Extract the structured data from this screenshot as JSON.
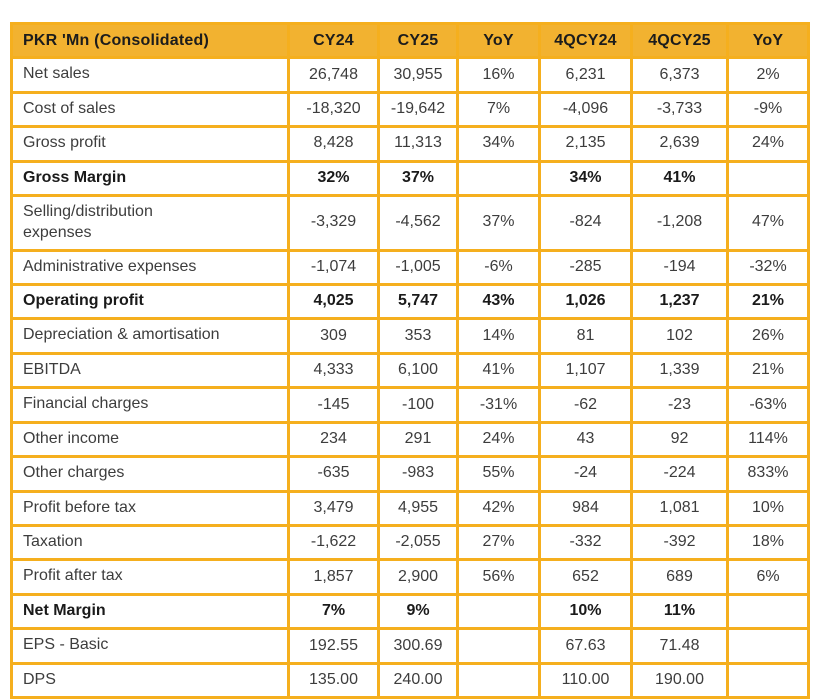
{
  "chart_data": {
    "type": "table",
    "title": "PKR 'Mn (Consolidated)",
    "columns": [
      "PKR 'Mn (Consolidated)",
      "CY24",
      "CY25",
      "YoY",
      "4QCY24",
      "4QCY25",
      "YoY"
    ],
    "rows": [
      {
        "label": "Net sales",
        "bold": false,
        "values": [
          "26,748",
          "30,955",
          "16%",
          "6,231",
          "6,373",
          "2%"
        ]
      },
      {
        "label": "Cost of sales",
        "bold": false,
        "values": [
          "-18,320",
          "-19,642",
          "7%",
          "-4,096",
          "-3,733",
          "-9%"
        ]
      },
      {
        "label": "Gross profit",
        "bold": false,
        "values": [
          "8,428",
          "11,313",
          "34%",
          "2,135",
          "2,639",
          "24%"
        ]
      },
      {
        "label": "Gross Margin",
        "bold": true,
        "values": [
          "32%",
          "37%",
          "",
          "34%",
          "41%",
          ""
        ]
      },
      {
        "label": "Selling/distribution expenses",
        "bold": false,
        "values": [
          "-3,329",
          "-4,562",
          "37%",
          "-824",
          "-1,208",
          "47%"
        ]
      },
      {
        "label": "Administrative expenses",
        "bold": false,
        "values": [
          "-1,074",
          "-1,005",
          "-6%",
          "-285",
          "-194",
          "-32%"
        ]
      },
      {
        "label": "Operating profit",
        "bold": true,
        "values": [
          "4,025",
          "5,747",
          "43%",
          "1,026",
          "1,237",
          "21%"
        ]
      },
      {
        "label": "Depreciation & amortisation",
        "bold": false,
        "values": [
          "309",
          "353",
          "14%",
          "81",
          "102",
          "26%"
        ]
      },
      {
        "label": "EBITDA",
        "bold": false,
        "values": [
          "4,333",
          "6,100",
          "41%",
          "1,107",
          "1,339",
          "21%"
        ]
      },
      {
        "label": "Financial charges",
        "bold": false,
        "values": [
          "-145",
          "-100",
          "-31%",
          "-62",
          "-23",
          "-63%"
        ]
      },
      {
        "label": "Other income",
        "bold": false,
        "values": [
          "234",
          "291",
          "24%",
          "43",
          "92",
          "114%"
        ]
      },
      {
        "label": "Other charges",
        "bold": false,
        "values": [
          "-635",
          "-983",
          "55%",
          "-24",
          "-224",
          "833%"
        ]
      },
      {
        "label": "Profit before tax",
        "bold": false,
        "values": [
          "3,479",
          "4,955",
          "42%",
          "984",
          "1,081",
          "10%"
        ]
      },
      {
        "label": "Taxation",
        "bold": false,
        "values": [
          "-1,622",
          "-2,055",
          "27%",
          "-332",
          "-392",
          "18%"
        ]
      },
      {
        "label": "Profit after tax",
        "bold": false,
        "values": [
          "1,857",
          "2,900",
          "56%",
          "652",
          "689",
          "6%"
        ]
      },
      {
        "label": "Net Margin",
        "bold": true,
        "values": [
          "7%",
          "9%",
          "",
          "10%",
          "11%",
          ""
        ]
      },
      {
        "label": "EPS - Basic",
        "bold": false,
        "values": [
          "192.55",
          "300.69",
          "",
          "67.63",
          "71.48",
          ""
        ]
      },
      {
        "label": "DPS",
        "bold": false,
        "values": [
          "135.00",
          "240.00",
          "",
          "110.00",
          "190.00",
          ""
        ]
      }
    ],
    "layout": {
      "grid": true,
      "header_position": "top",
      "bold_rows": [
        "Gross Margin",
        "Operating profit",
        "Net Margin"
      ]
    },
    "colors": {
      "header_bg": "#F2B230",
      "border": "#F5AF1E",
      "text": "#3D3D3D",
      "bold_text": "#1A1A1A",
      "header_text": "#1C1C1C",
      "background": "#FFFFFF"
    }
  }
}
